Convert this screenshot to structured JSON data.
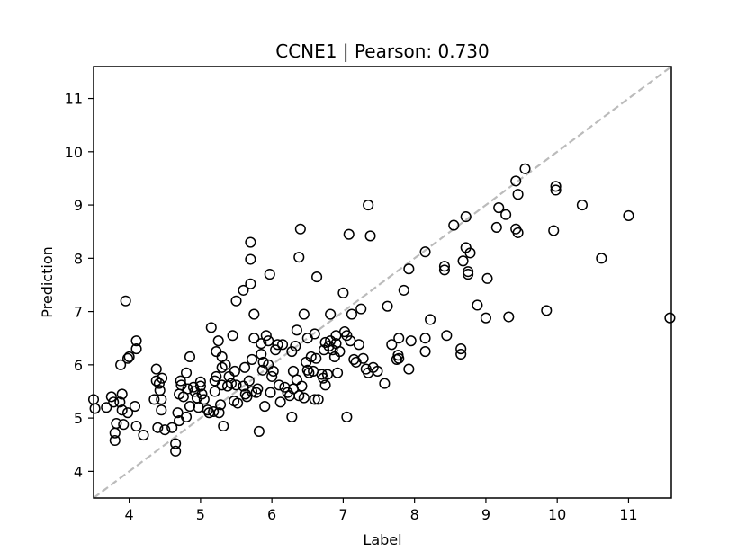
{
  "chart_data": {
    "type": "scatter",
    "title": "CCNE1  |  Pearson: 0.730",
    "xlabel": "Label",
    "ylabel": "Prediction",
    "xlim": [
      3.5,
      11.6
    ],
    "ylim": [
      3.5,
      11.6
    ],
    "xticks": [
      4,
      5,
      6,
      7,
      8,
      9,
      10,
      11
    ],
    "yticks": [
      4,
      5,
      6,
      7,
      8,
      9,
      10,
      11
    ],
    "grid": false,
    "reference_line": {
      "from": [
        3.5,
        3.5
      ],
      "to": [
        11.6,
        11.6
      ],
      "style": "dashed",
      "color": "#bbbbbb"
    },
    "marker": {
      "shape": "circle",
      "fill": "none",
      "stroke": "#000000"
    },
    "points": [
      [
        3.5,
        5.35
      ],
      [
        3.52,
        5.18
      ],
      [
        3.68,
        5.2
      ],
      [
        3.75,
        5.4
      ],
      [
        3.78,
        5.3
      ],
      [
        3.82,
        4.9
      ],
      [
        3.8,
        4.58
      ],
      [
        3.8,
        4.72
      ],
      [
        3.87,
        5.3
      ],
      [
        3.9,
        5.45
      ],
      [
        3.9,
        5.15
      ],
      [
        3.92,
        4.88
      ],
      [
        3.98,
        5.1
      ],
      [
        3.88,
        6.0
      ],
      [
        3.98,
        6.12
      ],
      [
        4.0,
        6.15
      ],
      [
        3.95,
        7.2
      ],
      [
        4.1,
        6.45
      ],
      [
        4.1,
        6.3
      ],
      [
        4.08,
        5.22
      ],
      [
        4.1,
        4.85
      ],
      [
        4.2,
        4.68
      ],
      [
        4.35,
        5.35
      ],
      [
        4.38,
        5.92
      ],
      [
        4.38,
        5.7
      ],
      [
        4.4,
        4.82
      ],
      [
        4.42,
        5.65
      ],
      [
        4.43,
        5.52
      ],
      [
        4.45,
        5.15
      ],
      [
        4.45,
        5.35
      ],
      [
        4.46,
        5.75
      ],
      [
        4.5,
        4.78
      ],
      [
        4.6,
        4.82
      ],
      [
        4.65,
        4.52
      ],
      [
        4.65,
        4.38
      ],
      [
        4.68,
        5.1
      ],
      [
        4.7,
        4.95
      ],
      [
        4.7,
        5.45
      ],
      [
        4.72,
        5.7
      ],
      [
        4.73,
        5.62
      ],
      [
        4.76,
        5.4
      ],
      [
        4.8,
        5.85
      ],
      [
        4.8,
        5.02
      ],
      [
        4.82,
        5.55
      ],
      [
        4.85,
        6.15
      ],
      [
        4.85,
        5.22
      ],
      [
        4.9,
        5.58
      ],
      [
        4.92,
        5.5
      ],
      [
        4.95,
        5.38
      ],
      [
        4.97,
        5.2
      ],
      [
        5.0,
        5.68
      ],
      [
        5.0,
        5.6
      ],
      [
        5.02,
        5.45
      ],
      [
        5.05,
        5.35
      ],
      [
        5.1,
        5.15
      ],
      [
        5.12,
        5.1
      ],
      [
        5.15,
        6.7
      ],
      [
        5.18,
        5.12
      ],
      [
        5.2,
        5.5
      ],
      [
        5.2,
        5.7
      ],
      [
        5.22,
        5.78
      ],
      [
        5.22,
        6.25
      ],
      [
        5.25,
        6.45
      ],
      [
        5.26,
        5.1
      ],
      [
        5.28,
        5.25
      ],
      [
        5.3,
        6.15
      ],
      [
        5.3,
        5.62
      ],
      [
        5.3,
        5.95
      ],
      [
        5.32,
        4.85
      ],
      [
        5.35,
        6.0
      ],
      [
        5.38,
        5.6
      ],
      [
        5.4,
        5.78
      ],
      [
        5.43,
        5.65
      ],
      [
        5.45,
        6.55
      ],
      [
        5.47,
        5.32
      ],
      [
        5.48,
        5.88
      ],
      [
        5.5,
        5.62
      ],
      [
        5.52,
        5.28
      ],
      [
        5.5,
        7.2
      ],
      [
        5.6,
        5.6
      ],
      [
        5.6,
        7.4
      ],
      [
        5.62,
        5.95
      ],
      [
        5.63,
        5.45
      ],
      [
        5.65,
        5.4
      ],
      [
        5.68,
        5.7
      ],
      [
        5.7,
        7.52
      ],
      [
        5.7,
        8.3
      ],
      [
        5.7,
        7.98
      ],
      [
        5.72,
        5.5
      ],
      [
        5.72,
        6.1
      ],
      [
        5.75,
        6.5
      ],
      [
        5.75,
        6.95
      ],
      [
        5.78,
        5.48
      ],
      [
        5.8,
        5.55
      ],
      [
        5.82,
        4.75
      ],
      [
        5.85,
        6.2
      ],
      [
        5.85,
        6.4
      ],
      [
        5.87,
        5.9
      ],
      [
        5.88,
        6.05
      ],
      [
        5.9,
        5.22
      ],
      [
        5.92,
        6.55
      ],
      [
        5.95,
        6.45
      ],
      [
        5.95,
        6.0
      ],
      [
        5.97,
        7.7
      ],
      [
        5.98,
        5.48
      ],
      [
        6.0,
        5.78
      ],
      [
        6.02,
        5.88
      ],
      [
        6.05,
        6.28
      ],
      [
        6.08,
        6.38
      ],
      [
        6.1,
        5.62
      ],
      [
        6.12,
        5.3
      ],
      [
        6.15,
        6.38
      ],
      [
        6.18,
        5.58
      ],
      [
        6.22,
        5.48
      ],
      [
        6.25,
        5.42
      ],
      [
        6.28,
        5.02
      ],
      [
        6.28,
        6.25
      ],
      [
        6.3,
        5.55
      ],
      [
        6.3,
        5.88
      ],
      [
        6.33,
        6.35
      ],
      [
        6.35,
        6.65
      ],
      [
        6.35,
        5.72
      ],
      [
        6.38,
        5.42
      ],
      [
        6.38,
        8.02
      ],
      [
        6.4,
        8.55
      ],
      [
        6.42,
        5.6
      ],
      [
        6.45,
        5.38
      ],
      [
        6.45,
        6.95
      ],
      [
        6.48,
        6.05
      ],
      [
        6.5,
        5.9
      ],
      [
        6.5,
        6.5
      ],
      [
        6.52,
        5.85
      ],
      [
        6.55,
        6.15
      ],
      [
        6.58,
        5.88
      ],
      [
        6.6,
        5.35
      ],
      [
        6.6,
        6.58
      ],
      [
        6.62,
        6.12
      ],
      [
        6.63,
        7.65
      ],
      [
        6.65,
        5.35
      ],
      [
        6.7,
        5.82
      ],
      [
        6.72,
        5.75
      ],
      [
        6.73,
        6.28
      ],
      [
        6.75,
        5.62
      ],
      [
        6.75,
        6.42
      ],
      [
        6.78,
        5.82
      ],
      [
        6.8,
        6.35
      ],
      [
        6.82,
        6.95
      ],
      [
        6.82,
        6.45
      ],
      [
        6.85,
        6.28
      ],
      [
        6.88,
        6.15
      ],
      [
        6.9,
        6.55
      ],
      [
        6.9,
        6.4
      ],
      [
        6.92,
        5.85
      ],
      [
        6.95,
        6.25
      ],
      [
        7.0,
        7.35
      ],
      [
        7.02,
        6.62
      ],
      [
        7.05,
        6.55
      ],
      [
        7.05,
        5.02
      ],
      [
        7.08,
        8.45
      ],
      [
        7.1,
        6.45
      ],
      [
        7.12,
        6.95
      ],
      [
        7.15,
        6.1
      ],
      [
        7.18,
        6.05
      ],
      [
        7.22,
        6.38
      ],
      [
        7.25,
        7.05
      ],
      [
        7.28,
        6.12
      ],
      [
        7.32,
        5.92
      ],
      [
        7.35,
        5.85
      ],
      [
        7.35,
        9.0
      ],
      [
        7.38,
        8.42
      ],
      [
        7.42,
        5.95
      ],
      [
        7.48,
        5.88
      ],
      [
        7.58,
        5.65
      ],
      [
        7.62,
        7.1
      ],
      [
        7.68,
        6.38
      ],
      [
        7.75,
        6.1
      ],
      [
        7.77,
        6.18
      ],
      [
        7.78,
        6.5
      ],
      [
        7.78,
        6.12
      ],
      [
        7.85,
        7.4
      ],
      [
        7.92,
        7.8
      ],
      [
        7.92,
        5.92
      ],
      [
        7.95,
        6.45
      ],
      [
        8.15,
        8.12
      ],
      [
        8.15,
        6.5
      ],
      [
        8.15,
        6.25
      ],
      [
        8.22,
        6.85
      ],
      [
        8.42,
        7.85
      ],
      [
        8.42,
        7.78
      ],
      [
        8.45,
        6.55
      ],
      [
        8.55,
        8.62
      ],
      [
        8.65,
        6.3
      ],
      [
        8.65,
        6.2
      ],
      [
        8.68,
        7.95
      ],
      [
        8.72,
        8.78
      ],
      [
        8.72,
        8.2
      ],
      [
        8.75,
        7.75
      ],
      [
        8.75,
        7.7
      ],
      [
        8.78,
        8.1
      ],
      [
        8.88,
        7.12
      ],
      [
        9.0,
        6.88
      ],
      [
        9.02,
        7.62
      ],
      [
        9.15,
        8.58
      ],
      [
        9.18,
        8.95
      ],
      [
        9.28,
        8.82
      ],
      [
        9.32,
        6.9
      ],
      [
        9.42,
        8.55
      ],
      [
        9.42,
        9.45
      ],
      [
        9.45,
        9.2
      ],
      [
        9.45,
        8.48
      ],
      [
        9.55,
        9.68
      ],
      [
        9.85,
        7.02
      ],
      [
        9.95,
        8.52
      ],
      [
        9.98,
        9.35
      ],
      [
        9.98,
        9.28
      ],
      [
        10.35,
        9.0
      ],
      [
        10.62,
        8.0
      ],
      [
        11.0,
        8.8
      ],
      [
        11.58,
        6.88
      ]
    ]
  }
}
